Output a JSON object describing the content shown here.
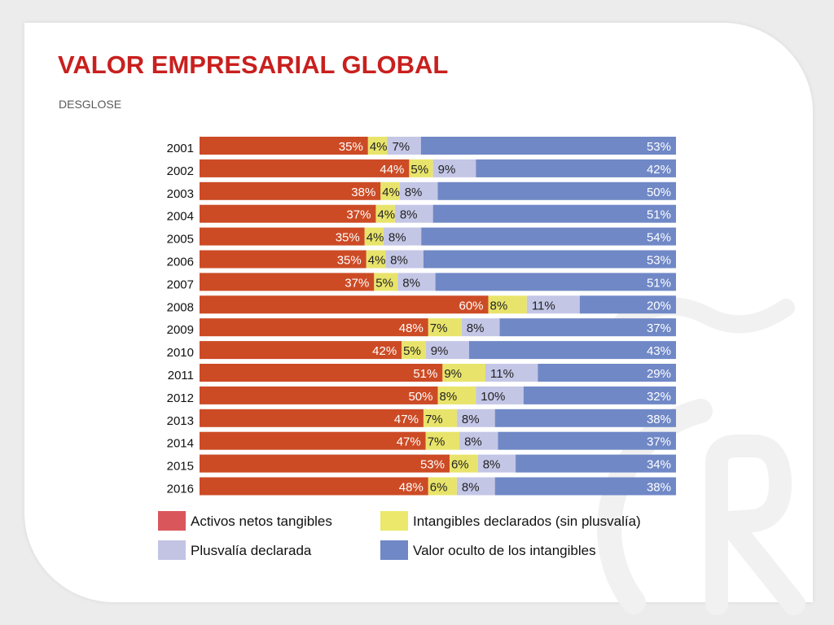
{
  "page": {
    "title": "VALOR EMPRESARIAL GLOBAL",
    "subtitle": "DESGLOSE"
  },
  "chart_data": {
    "type": "bar",
    "orientation": "horizontal",
    "stacked": "percent",
    "categories": [
      "2001",
      "2002",
      "2003",
      "2004",
      "2005",
      "2006",
      "2007",
      "2008",
      "2009",
      "2010",
      "2011",
      "2012",
      "2013",
      "2014",
      "2015",
      "2016"
    ],
    "series": [
      {
        "name": "Activos netos tangibles",
        "color": "#cc4b25",
        "legend_color": "#d9575b",
        "label_color": "#ffffff",
        "values": [
          35,
          44,
          38,
          37,
          35,
          35,
          37,
          60,
          48,
          42,
          51,
          50,
          47,
          47,
          53,
          48
        ]
      },
      {
        "name": "Intangibles declarados (sin plusvalía)",
        "color": "#e8e46b",
        "legend_color": "#ece86b",
        "label_color": "#222222",
        "values": [
          4,
          5,
          4,
          4,
          4,
          4,
          5,
          8,
          7,
          5,
          9,
          8,
          7,
          7,
          6,
          6
        ]
      },
      {
        "name": "Plusvalía declarada",
        "color": "#c4c6e6",
        "legend_color": "#c3c4e4",
        "label_color": "#222222",
        "values": [
          7,
          9,
          8,
          8,
          8,
          8,
          8,
          11,
          8,
          9,
          11,
          10,
          8,
          8,
          8,
          8
        ]
      },
      {
        "name": "Valor oculto de los intangibles",
        "color": "#7088c6",
        "legend_color": "#7088c6",
        "label_color": "#ffffff",
        "values": [
          53,
          42,
          50,
          51,
          54,
          53,
          51,
          20,
          37,
          43,
          29,
          32,
          38,
          37,
          34,
          38
        ]
      }
    ],
    "value_suffix": "%",
    "legend_position": "bottom",
    "grid": false,
    "xlim": [
      0,
      100
    ]
  }
}
